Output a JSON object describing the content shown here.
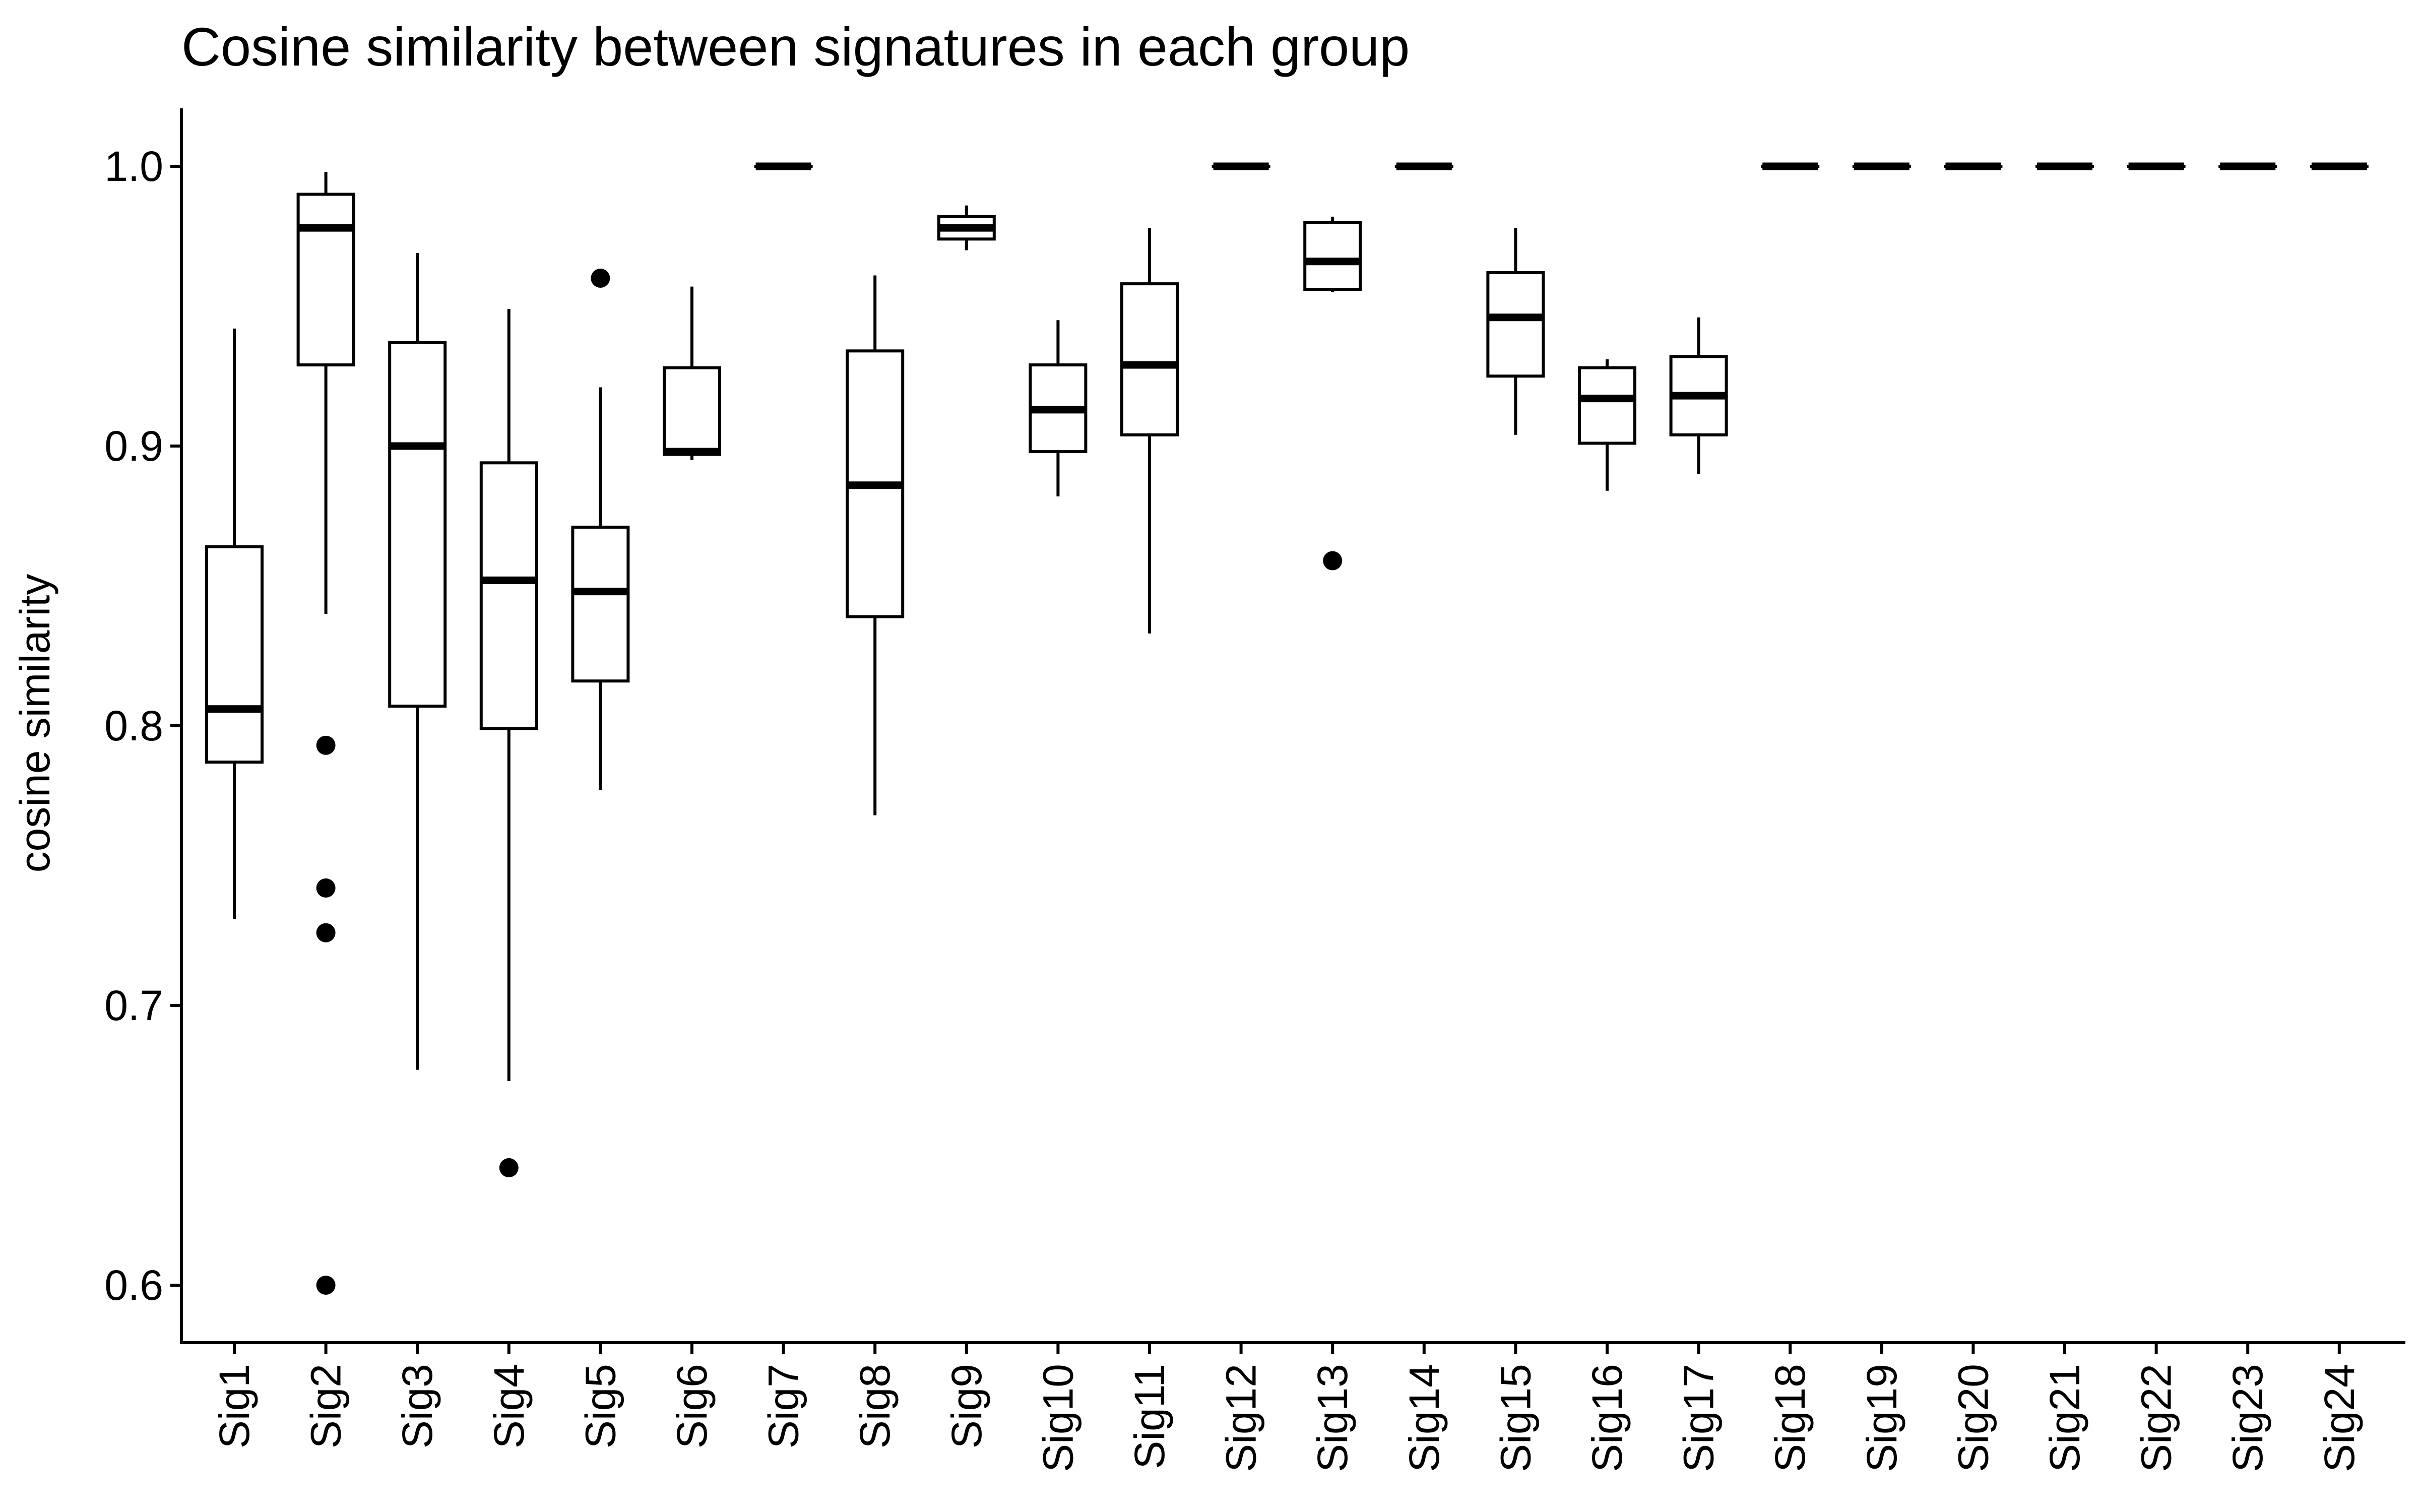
{
  "chart_data": {
    "type": "boxplot",
    "title": "Cosine similarity between signatures in each group",
    "xlabel": "",
    "ylabel": "cosine similarity",
    "ylim": [
      0.58,
      1.02
    ],
    "yticks": [
      0.6,
      0.7,
      0.8,
      0.9,
      1.0
    ],
    "ytick_labels": [
      "0.6",
      "0.7",
      "0.8",
      "0.9",
      "1.0"
    ],
    "grid": false,
    "categories": [
      "Sig1",
      "Sig2",
      "Sig3",
      "Sig4",
      "Sig5",
      "Sig6",
      "Sig7",
      "Sig8",
      "Sig9",
      "Sig10",
      "Sig11",
      "Sig12",
      "Sig13",
      "Sig14",
      "Sig15",
      "Sig16",
      "Sig17",
      "Sig18",
      "Sig19",
      "Sig20",
      "Sig21",
      "Sig22",
      "Sig23",
      "Sig24"
    ],
    "boxes": [
      {
        "min": 0.731,
        "q1": 0.787,
        "median": 0.806,
        "q3": 0.864,
        "max": 0.942,
        "outliers": []
      },
      {
        "min": 0.84,
        "q1": 0.929,
        "median": 0.978,
        "q3": 0.99,
        "max": 0.998,
        "outliers": [
          0.793,
          0.742,
          0.726,
          0.6
        ]
      },
      {
        "min": 0.677,
        "q1": 0.807,
        "median": 0.9,
        "q3": 0.937,
        "max": 0.969,
        "outliers": []
      },
      {
        "min": 0.673,
        "q1": 0.799,
        "median": 0.852,
        "q3": 0.894,
        "max": 0.949,
        "outliers": [
          0.642
        ]
      },
      {
        "min": 0.777,
        "q1": 0.816,
        "median": 0.848,
        "q3": 0.871,
        "max": 0.921,
        "outliers": [
          0.96
        ]
      },
      {
        "min": 0.895,
        "q1": 0.897,
        "median": 0.898,
        "q3": 0.928,
        "max": 0.957,
        "outliers": []
      },
      {
        "min": 1.0,
        "q1": 1.0,
        "median": 1.0,
        "q3": 1.0,
        "max": 1.0,
        "outliers": []
      },
      {
        "min": 0.768,
        "q1": 0.839,
        "median": 0.886,
        "q3": 0.934,
        "max": 0.961,
        "outliers": []
      },
      {
        "min": 0.97,
        "q1": 0.974,
        "median": 0.978,
        "q3": 0.982,
        "max": 0.986,
        "outliers": []
      },
      {
        "min": 0.882,
        "q1": 0.898,
        "median": 0.913,
        "q3": 0.929,
        "max": 0.945,
        "outliers": []
      },
      {
        "min": 0.833,
        "q1": 0.904,
        "median": 0.929,
        "q3": 0.958,
        "max": 0.978,
        "outliers": []
      },
      {
        "min": 1.0,
        "q1": 1.0,
        "median": 1.0,
        "q3": 1.0,
        "max": 1.0,
        "outliers": []
      },
      {
        "min": 0.955,
        "q1": 0.956,
        "median": 0.966,
        "q3": 0.98,
        "max": 0.982,
        "outliers": [
          0.859
        ]
      },
      {
        "min": 1.0,
        "q1": 1.0,
        "median": 1.0,
        "q3": 1.0,
        "max": 1.0,
        "outliers": []
      },
      {
        "min": 0.904,
        "q1": 0.925,
        "median": 0.946,
        "q3": 0.962,
        "max": 0.978,
        "outliers": []
      },
      {
        "min": 0.884,
        "q1": 0.901,
        "median": 0.917,
        "q3": 0.928,
        "max": 0.931,
        "outliers": []
      },
      {
        "min": 0.89,
        "q1": 0.904,
        "median": 0.918,
        "q3": 0.932,
        "max": 0.946,
        "outliers": []
      },
      {
        "min": 1.0,
        "q1": 1.0,
        "median": 1.0,
        "q3": 1.0,
        "max": 1.0,
        "outliers": []
      },
      {
        "min": 1.0,
        "q1": 1.0,
        "median": 1.0,
        "q3": 1.0,
        "max": 1.0,
        "outliers": []
      },
      {
        "min": 1.0,
        "q1": 1.0,
        "median": 1.0,
        "q3": 1.0,
        "max": 1.0,
        "outliers": []
      },
      {
        "min": 1.0,
        "q1": 1.0,
        "median": 1.0,
        "q3": 1.0,
        "max": 1.0,
        "outliers": []
      },
      {
        "min": 1.0,
        "q1": 1.0,
        "median": 1.0,
        "q3": 1.0,
        "max": 1.0,
        "outliers": []
      },
      {
        "min": 1.0,
        "q1": 1.0,
        "median": 1.0,
        "q3": 1.0,
        "max": 1.0,
        "outliers": []
      },
      {
        "min": 1.0,
        "q1": 1.0,
        "median": 1.0,
        "q3": 1.0,
        "max": 1.0,
        "outliers": []
      }
    ],
    "colors": {
      "box_fill": "#ffffff",
      "stroke": "#000000",
      "outlier": "#000000"
    }
  }
}
